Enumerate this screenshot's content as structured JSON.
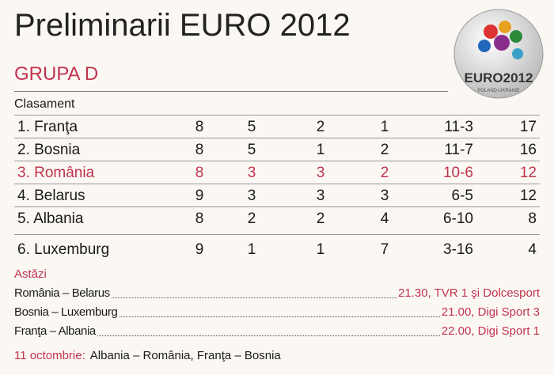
{
  "header": {
    "title": "Preliminarii EURO 2012",
    "group": "GRUPA D"
  },
  "logo": {
    "text": "EURO2012",
    "subtext": "POLAND-UKRAINE"
  },
  "table": {
    "caption": "Clasament",
    "rows": [
      [
        "1. Franţa",
        8,
        5,
        2,
        1,
        "11-3",
        17
      ],
      [
        "2. Bosnia",
        8,
        5,
        1,
        2,
        "11-7",
        16
      ],
      [
        "3. România",
        8,
        3,
        3,
        2,
        "10-6",
        12
      ],
      [
        "4. Belarus",
        9,
        3,
        3,
        3,
        "6-5",
        12
      ],
      [
        "5. Albania",
        8,
        2,
        2,
        4,
        "6-10",
        8
      ],
      [
        "6. Luxemburg",
        9,
        1,
        1,
        7,
        "3-16",
        4
      ]
    ]
  },
  "today": {
    "label": "Astăzi",
    "matches": [
      {
        "teams": "România – Belarus",
        "info": "21.30, TVR 1 şi Dolcesport"
      },
      {
        "teams": "Bosnia – Luxemburg",
        "info": "21.00, Digi Sport 3"
      },
      {
        "teams": "Franţa – Albania",
        "info": "22.00, Digi Sport 1"
      }
    ]
  },
  "next": {
    "label": "11 octombrie:",
    "text": "Albania – România, Franţa – Bosnia"
  }
}
